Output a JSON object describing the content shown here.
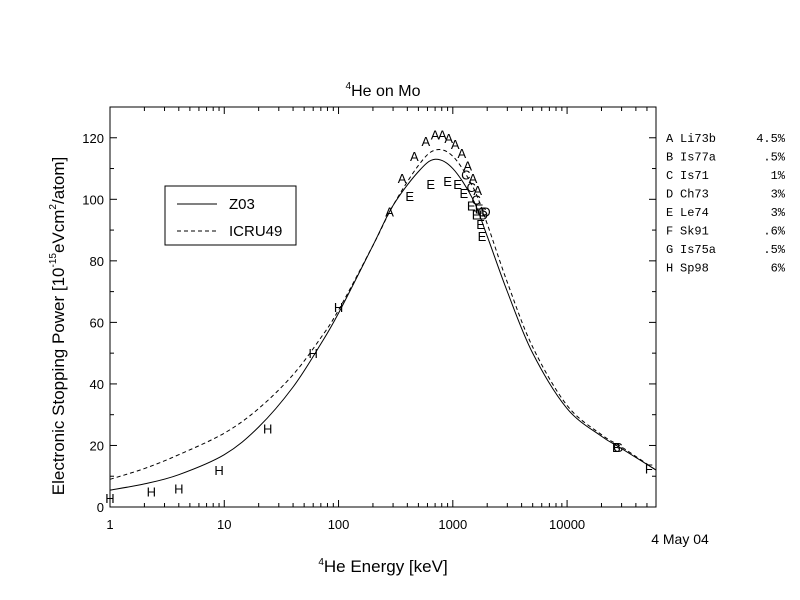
{
  "chart_data": {
    "type": "scatter",
    "title": {
      "prefix_sup": "4",
      "text": "He on Mo"
    },
    "xlabel": {
      "prefix_sup": "4",
      "text": "He Energy [keV]"
    },
    "ylabel": {
      "before": "Electronic Stopping Power [10",
      "sup1": "-15",
      "middle": "eVcm",
      "sup2": "2",
      "after": "/atom]"
    },
    "x_scale": "log",
    "xlim": [
      1,
      60000
    ],
    "ylim": [
      0,
      130
    ],
    "x_ticks": [
      {
        "value": 1,
        "label": "1"
      },
      {
        "value": 10,
        "label": "10"
      },
      {
        "value": 100,
        "label": "100"
      },
      {
        "value": 1000,
        "label": "1000"
      },
      {
        "value": 10000,
        "label": "10000"
      }
    ],
    "y_ticks": [
      {
        "value": 0,
        "label": "0"
      },
      {
        "value": 20,
        "label": "20"
      },
      {
        "value": 40,
        "label": "40"
      },
      {
        "value": 60,
        "label": "60"
      },
      {
        "value": 80,
        "label": "80"
      },
      {
        "value": 100,
        "label": "100"
      },
      {
        "value": 120,
        "label": "120"
      }
    ],
    "date_note": "4 May 04",
    "legend": {
      "placement": "upper-left",
      "entries": [
        {
          "label": "Z03",
          "style": "solid"
        },
        {
          "label": "ICRU49",
          "style": "dashed"
        }
      ]
    },
    "series": [
      {
        "name": "Z03",
        "style": "solid",
        "x": [
          1,
          2,
          4,
          10,
          20,
          40,
          70,
          100,
          200,
          300,
          500,
          700,
          1000,
          1500,
          2000,
          3000,
          5000,
          10000,
          20000,
          30000,
          60000
        ],
        "y": [
          5.5,
          7.5,
          10.5,
          17,
          26,
          39,
          53,
          63,
          85,
          98,
          109,
          113,
          110,
          100,
          88,
          70,
          50,
          32,
          23,
          19,
          12
        ]
      },
      {
        "name": "ICRU49",
        "style": "dashed",
        "x": [
          1,
          2,
          4,
          10,
          20,
          40,
          70,
          100,
          200,
          300,
          500,
          700,
          1000,
          1500,
          2000,
          3000,
          5000,
          10000,
          20000,
          30000,
          60000
        ],
        "y": [
          9,
          12.5,
          17,
          24,
          32,
          43,
          55,
          64,
          85,
          98,
          111,
          116,
          114,
          104,
          92,
          73,
          52,
          33,
          23.5,
          19.5,
          12
        ]
      }
    ],
    "dataset_legend": [
      {
        "letter": "A",
        "ref": "Li73b",
        "error": "4.5%"
      },
      {
        "letter": "B",
        "ref": "Is77a",
        "error": ".5%"
      },
      {
        "letter": "C",
        "ref": "Is71",
        "error": "1%"
      },
      {
        "letter": "D",
        "ref": "Ch73",
        "error": "3%"
      },
      {
        "letter": "E",
        "ref": "Le74",
        "error": "3%"
      },
      {
        "letter": "F",
        "ref": "Sk91",
        "error": ".6%"
      },
      {
        "letter": "G",
        "ref": "Is75a",
        "error": ".5%"
      },
      {
        "letter": "H",
        "ref": "Sp98",
        "error": "6%"
      }
    ],
    "points": [
      {
        "label": "H",
        "x": 1,
        "y": 3
      },
      {
        "label": "H",
        "x": 2.3,
        "y": 5
      },
      {
        "label": "H",
        "x": 4,
        "y": 6
      },
      {
        "label": "H",
        "x": 9,
        "y": 12
      },
      {
        "label": "H",
        "x": 24,
        "y": 25.5
      },
      {
        "label": "H",
        "x": 60,
        "y": 50
      },
      {
        "label": "H",
        "x": 100,
        "y": 65
      },
      {
        "label": "A",
        "x": 280,
        "y": 96
      },
      {
        "label": "A",
        "x": 360,
        "y": 107
      },
      {
        "label": "A",
        "x": 460,
        "y": 114
      },
      {
        "label": "A",
        "x": 580,
        "y": 119
      },
      {
        "label": "A",
        "x": 700,
        "y": 121
      },
      {
        "label": "A",
        "x": 810,
        "y": 121
      },
      {
        "label": "A",
        "x": 920,
        "y": 120
      },
      {
        "label": "A",
        "x": 1050,
        "y": 118
      },
      {
        "label": "A",
        "x": 1200,
        "y": 115
      },
      {
        "label": "A",
        "x": 1350,
        "y": 111
      },
      {
        "label": "A",
        "x": 1500,
        "y": 107
      },
      {
        "label": "A",
        "x": 1650,
        "y": 103
      },
      {
        "label": "E",
        "x": 420,
        "y": 101
      },
      {
        "label": "E",
        "x": 640,
        "y": 105
      },
      {
        "label": "E",
        "x": 900,
        "y": 106
      },
      {
        "label": "E",
        "x": 1100,
        "y": 105
      },
      {
        "label": "E",
        "x": 1250,
        "y": 102
      },
      {
        "label": "E",
        "x": 1450,
        "y": 98
      },
      {
        "label": "E",
        "x": 1600,
        "y": 95
      },
      {
        "label": "E",
        "x": 1750,
        "y": 92
      },
      {
        "label": "E",
        "x": 1700,
        "y": 97
      },
      {
        "label": "E",
        "x": 1800,
        "y": 88
      },
      {
        "label": "C",
        "x": 1300,
        "y": 108
      },
      {
        "label": "C",
        "x": 1450,
        "y": 104
      },
      {
        "label": "C",
        "x": 1600,
        "y": 100
      },
      {
        "label": "C",
        "x": 1800,
        "y": 96
      },
      {
        "label": "D",
        "x": 1950,
        "y": 96
      },
      {
        "label": "D",
        "x": 1850,
        "y": 95
      },
      {
        "label": "B",
        "x": 27000,
        "y": 19.5
      },
      {
        "label": "G",
        "x": 28000,
        "y": 19.5
      },
      {
        "label": "F",
        "x": 52000,
        "y": 12.5
      }
    ]
  }
}
